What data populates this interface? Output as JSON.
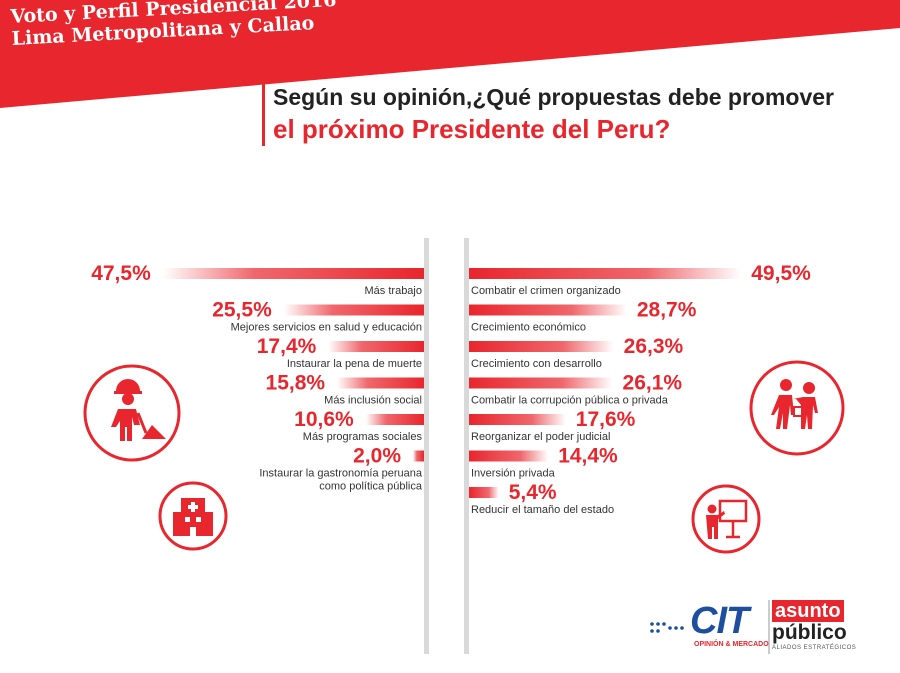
{
  "banner": {
    "title_line1": "Voto y Perfil Presidencial 2016",
    "title_line2": "Lima Metropolitana y Callao"
  },
  "question": {
    "line1": "Según su opinión,¿Qué propuestas debe promover",
    "line2": "el próximo Presidente del Peru?"
  },
  "colors": {
    "accent": "#e8262d",
    "text": "#333333",
    "cit_blue": "#1e4e9e"
  },
  "chart_data": [
    {
      "type": "bar",
      "orientation": "horizontal",
      "side": "left",
      "categories": [
        "Más trabajo",
        "Mejores servicios en salud y educación",
        "Instaurar la pena de muerte",
        "Más inclusión social",
        "Más programas sociales",
        "Instaurar la gastronomía peruana como política pública"
      ],
      "category_lines": [
        [
          "Más trabajo"
        ],
        [
          "Mejores servicios en salud y educación"
        ],
        [
          "Instaurar la pena de muerte"
        ],
        [
          "Más inclusión social"
        ],
        [
          "Más programas sociales"
        ],
        [
          "Instaurar la gastronomía peruana",
          "como política pública"
        ]
      ],
      "values": [
        47.5,
        25.5,
        17.4,
        15.8,
        10.6,
        2.0
      ],
      "value_labels": [
        "47,5%",
        "25,5%",
        "17,4%",
        "15,8%",
        "10,6%",
        "2,0%"
      ],
      "xlim": [
        0,
        50
      ]
    },
    {
      "type": "bar",
      "orientation": "horizontal",
      "side": "right",
      "categories": [
        "Combatir el crimen organizado",
        "Crecimiento económico",
        "Crecimiento con desarrollo",
        "Combatir la corrupción pública o privada",
        "Reorganizar el poder judicial",
        "Inversión privada",
        "Reducir el tamaño del estado"
      ],
      "category_lines": [
        [
          "Combatir el crimen organizado"
        ],
        [
          "Crecimiento económico"
        ],
        [
          "Crecimiento con desarrollo"
        ],
        [
          "Combatir la corrupción pública o privada"
        ],
        [
          "Reorganizar el poder judicial"
        ],
        [
          "Inversión privada"
        ],
        [
          "Reducir el tamaño del estado"
        ]
      ],
      "values": [
        49.5,
        28.7,
        26.3,
        26.1,
        17.6,
        14.4,
        5.4
      ],
      "value_labels": [
        "49,5%",
        "28,7%",
        "26,3%",
        "26,1%",
        "17,6%",
        "14,4%",
        "5,4%"
      ],
      "xlim": [
        0,
        50
      ]
    }
  ],
  "icons": [
    "construction-worker-icon",
    "hospital-icon",
    "people-walking-icon",
    "presentation-icon"
  ],
  "brand": {
    "cit_name": "CIT",
    "cit_tagline": "OPINIÓN & MERCADO",
    "ap_line1": "asunto",
    "ap_line2": "público",
    "ap_tagline": "ALIADOS ESTRATÉGICOS"
  }
}
